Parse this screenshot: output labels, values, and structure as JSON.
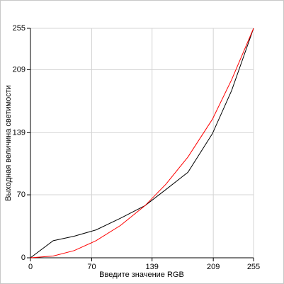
{
  "chart_data": {
    "type": "line",
    "x_label": "Введите значение RGB",
    "y_label": "Выходная величина светимости",
    "x": [
      0,
      26,
      50,
      75,
      103,
      131,
      155,
      180,
      208,
      230,
      255
    ],
    "series": [
      {
        "color": "#000000",
        "values": [
          0,
          19,
          24,
          31,
          44,
          58,
          76,
          95,
          138,
          186,
          255
        ]
      },
      {
        "color": "#ff0000",
        "values": [
          0,
          2,
          8,
          19,
          36,
          58,
          82,
          112,
          154,
          198,
          255
        ]
      }
    ],
    "xlim": [
      0,
      255
    ],
    "ylim": [
      0,
      255
    ],
    "xticks": [
      0,
      70,
      139,
      209,
      255
    ],
    "yticks": [
      0,
      70,
      139,
      209,
      255
    ],
    "grid": true
  }
}
